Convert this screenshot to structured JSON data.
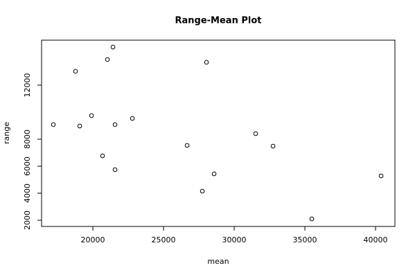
{
  "chart_data": {
    "type": "scatter",
    "title": "Range-Mean Plot",
    "x_label": "mean",
    "y_label": "range",
    "x": [
      17206,
      18775,
      19069,
      19902,
      20686,
      21029,
      21422,
      21569,
      21569,
      22794,
      26667,
      27745,
      28039,
      28578,
      31520,
      32745,
      35490,
      40392
    ],
    "y": [
      9077,
      13026,
      8974,
      9744,
      6769,
      13897,
      14821,
      9077,
      5744,
      9538,
      7538,
      4154,
      13692,
      5436,
      8410,
      7487,
      2103,
      5282
    ],
    "color": "#000000",
    "xlim": [
      16370,
      41370
    ],
    "xticks": [
      20000,
      25000,
      30000,
      35000,
      40000
    ],
    "ylim": [
      1540,
      15330
    ],
    "yticks": [
      2000,
      4000,
      6000,
      8000,
      12000
    ]
  }
}
